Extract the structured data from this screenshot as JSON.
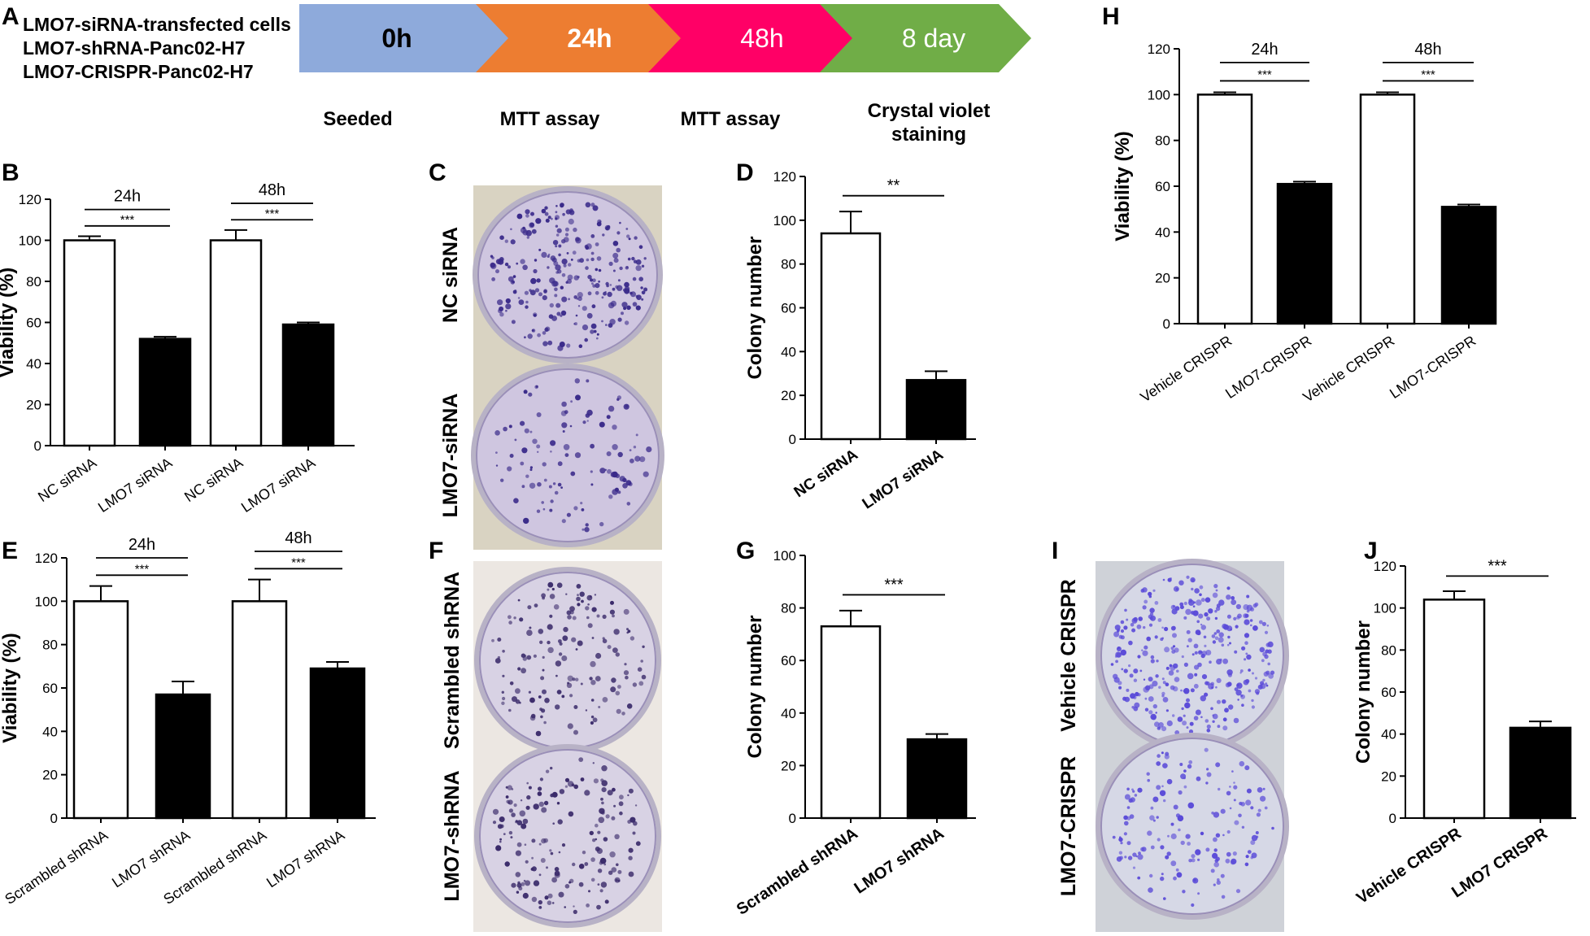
{
  "panel_letters": {
    "A": "A",
    "B": "B",
    "C": "C",
    "D": "D",
    "E": "E",
    "F": "F",
    "G": "G",
    "H": "H",
    "I": "I",
    "J": "J"
  },
  "timeline": {
    "header_lines": [
      "LMO7-siRNA-transfected cells",
      "LMO7-shRNA-Panc02-H7",
      "LMO7-CRISPR-Panc02-H7"
    ],
    "steps": [
      {
        "time": "0h",
        "label_lines": [
          "Seeded"
        ],
        "color": "#8eaadb",
        "text_color": "#000000"
      },
      {
        "time": "24h",
        "label_lines": [
          "MTT assay"
        ],
        "color": "#ed7d31",
        "text_color": "#ffffff"
      },
      {
        "time": "48h",
        "label_lines": [
          "MTT assay"
        ],
        "color": "#ff0066",
        "text_color": "#ffffff"
      },
      {
        "time": "8 day",
        "label_lines": [
          "Crystal violet",
          "staining"
        ],
        "color": "#70ad47",
        "text_color": "#ffffff"
      }
    ]
  },
  "photos": {
    "C": {
      "labels": [
        "NC siRNA",
        "LMO7-siRNA"
      ],
      "colony_color": "#3a2a8a",
      "dish_tint": "#cfc6e0"
    },
    "F": {
      "labels": [
        "Scrambled shRNA",
        "LMO7-shRNA"
      ],
      "colony_color": "#3a2a6a",
      "dish_tint": "#d8d2e4"
    },
    "I": {
      "labels": [
        "Vehicle CRISPR",
        "LMO7-CRISPR"
      ],
      "colony_color": "#5a4ad8",
      "dish_tint": "#d6d8e6"
    }
  },
  "chart_data": [
    {
      "panel": "B",
      "type": "bar",
      "ylabel": "Viability (%)",
      "ylim": [
        0,
        120
      ],
      "yticks": [
        0,
        20,
        40,
        60,
        80,
        100,
        120
      ],
      "categories": [
        "NC siRNA",
        "LMO7 siRNA",
        "NC siRNA",
        "LMO7 siRNA"
      ],
      "values": [
        100,
        52,
        100,
        59
      ],
      "errors": [
        2,
        1,
        5,
        1
      ],
      "fills": [
        "#ffffff",
        "#000000",
        "#ffffff",
        "#000000"
      ],
      "group_labels": [
        "24h",
        "48h"
      ],
      "significance": [
        "***",
        "***"
      ]
    },
    {
      "panel": "D",
      "type": "bar",
      "ylabel": "Colony number",
      "ylim": [
        0,
        120
      ],
      "yticks": [
        0,
        20,
        40,
        60,
        80,
        100,
        120
      ],
      "categories": [
        "NC siRNA",
        "LMO7 siRNA"
      ],
      "values": [
        94,
        27
      ],
      "errors": [
        10,
        4
      ],
      "fills": [
        "#ffffff",
        "#000000"
      ],
      "significance": [
        "**"
      ]
    },
    {
      "panel": "E",
      "type": "bar",
      "ylabel": "Viability (%)",
      "ylim": [
        0,
        120
      ],
      "yticks": [
        0,
        20,
        40,
        60,
        80,
        100,
        120
      ],
      "categories": [
        "Scrambled shRNA",
        "LMO7 shRNA",
        "Scrambled shRNA",
        "LMO7 shRNA"
      ],
      "values": [
        100,
        57,
        100,
        69
      ],
      "errors": [
        7,
        6,
        10,
        3
      ],
      "fills": [
        "#ffffff",
        "#000000",
        "#ffffff",
        "#000000"
      ],
      "group_labels": [
        "24h",
        "48h"
      ],
      "significance": [
        "***",
        "***"
      ]
    },
    {
      "panel": "G",
      "type": "bar",
      "ylabel": "Colony number",
      "ylim": [
        0,
        100
      ],
      "yticks": [
        0,
        20,
        40,
        60,
        80,
        100
      ],
      "categories": [
        "Scrambled shRNA",
        "LMO7 shRNA"
      ],
      "values": [
        73,
        30
      ],
      "errors": [
        6,
        2
      ],
      "fills": [
        "#ffffff",
        "#000000"
      ],
      "significance": [
        "***"
      ]
    },
    {
      "panel": "H",
      "type": "bar",
      "ylabel": "Viability (%)",
      "ylim": [
        0,
        120
      ],
      "yticks": [
        0,
        20,
        40,
        60,
        80,
        100,
        120
      ],
      "categories": [
        "Vehicle CRISPR",
        "LMO7-CRISPR",
        "Vehicle CRISPR",
        "LMO7-CRISPR"
      ],
      "values": [
        100,
        61,
        100,
        51
      ],
      "errors": [
        1,
        1,
        1,
        1
      ],
      "fills": [
        "#ffffff",
        "#000000",
        "#ffffff",
        "#000000"
      ],
      "group_labels": [
        "24h",
        "48h"
      ],
      "significance": [
        "***",
        "***"
      ]
    },
    {
      "panel": "J",
      "type": "bar",
      "ylabel": "Colony number",
      "ylim": [
        0,
        120
      ],
      "yticks": [
        0,
        20,
        40,
        60,
        80,
        100,
        120
      ],
      "categories": [
        "Vehicle CRISPR",
        "LMO7 CRISPR"
      ],
      "values": [
        104,
        43
      ],
      "errors": [
        4,
        3
      ],
      "fills": [
        "#ffffff",
        "#000000"
      ],
      "significance": [
        "***"
      ]
    }
  ]
}
